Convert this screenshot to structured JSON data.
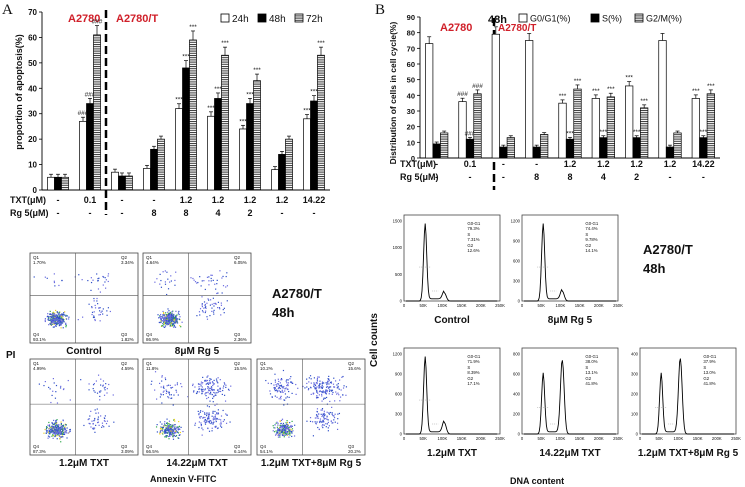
{
  "figure": {
    "panel_a_letter": "A",
    "panel_b_letter": "B",
    "flow_a": {
      "ylabel": "PI",
      "xlabel": "Annexin V-FITC",
      "cell_line": "A2780/T",
      "time": "48h",
      "plots": [
        {
          "caption": "Control",
          "q1": "1.70%",
          "q2": "3.34%",
          "q3": "1.82%",
          "q4": "93.1%"
        },
        {
          "caption": "8μM Rg 5",
          "q1": "4.64%",
          "q2": "6.05%",
          "q3": "2.36%",
          "q4": "86.9%"
        },
        {
          "caption": "1.2μM TXT",
          "q1": "4.99%",
          "q2": "4.59%",
          "q3": "3.09%",
          "q4": "87.3%"
        },
        {
          "caption": "14.22μM TXT",
          "q1": "11.8%",
          "q2": "15.5%",
          "q3": "6.14%",
          "q4": "66.5%"
        },
        {
          "caption": "1.2μM TXT+8μM Rg 5",
          "q1": "10.2%",
          "q2": "15.6%",
          "q3": "20.2%",
          "q4": "54.1%"
        }
      ]
    },
    "flow_b": {
      "ylabel": "Cell counts",
      "xlabel": "DNA content",
      "cell_line": "A2780/T",
      "time": "48h",
      "x_ticks": [
        "0",
        "50K",
        "100K",
        "150K",
        "200K",
        "250K"
      ],
      "plots": [
        {
          "caption": "Control",
          "y_ticks": [
            "0",
            "500",
            "1000",
            "1500"
          ],
          "g0g1": "79.3%",
          "s": "7.31%",
          "g2": "12.6%"
        },
        {
          "caption": "8μM Rg 5",
          "y_ticks": [
            "0",
            "300",
            "600",
            "900",
            "1200"
          ],
          "g0g1": "74.4%",
          "s": "9.78%",
          "g2": "14.1%"
        },
        {
          "caption": "1.2μM TXT",
          "y_ticks": [
            "0",
            "300",
            "600",
            "900",
            "1200"
          ],
          "g0g1": "71.9%",
          "s": "8.39%",
          "g2": "17.1%"
        },
        {
          "caption": "14.22μM TXT",
          "y_ticks": [
            "0",
            "200",
            "400",
            "600",
            "800"
          ],
          "g0g1": "38.0%",
          "s": "13.1%",
          "g2": "41.8%"
        },
        {
          "caption": "1.2μM TXT+8μM Rg 5",
          "y_ticks": [
            "0",
            "100",
            "200",
            "300",
            "400"
          ],
          "g0g1": "37.9%",
          "s": "13.0%",
          "g2": "41.8%"
        }
      ]
    }
  },
  "chart_data": [
    {
      "type": "bar",
      "title": "",
      "ylabel": "proportion of apoptosis(%)",
      "xlabel": "",
      "ylim": [
        0,
        70
      ],
      "y_ticks": [
        0,
        10,
        20,
        30,
        40,
        50,
        60,
        70
      ],
      "group_labels": [
        "A2780",
        "A2780/T"
      ],
      "legend": [
        "24h",
        "48h",
        "72h"
      ],
      "row_labels": [
        "TXT(μM)",
        "Rg 5(μM)"
      ],
      "txt": [
        "-",
        "0.1",
        "-",
        "-",
        "1.2",
        "1.2",
        "1.2",
        "1.2",
        "14.22"
      ],
      "rg5": [
        "-",
        "-",
        "-",
        "8",
        "8",
        "4",
        "2",
        "-",
        "-"
      ],
      "series": [
        {
          "name": "24h",
          "values": [
            5,
            27,
            7,
            8.5,
            32,
            29,
            24,
            8,
            28
          ]
        },
        {
          "name": "48h",
          "values": [
            5,
            34,
            5.5,
            16,
            48,
            36,
            34,
            14,
            35
          ]
        },
        {
          "name": "72h",
          "values": [
            5,
            61,
            5.5,
            20,
            59,
            53,
            43,
            20,
            53
          ]
        }
      ],
      "significance": [
        [
          "",
          "",
          ""
        ],
        [
          "###",
          "###",
          "###"
        ],
        [
          "",
          "",
          ""
        ],
        [
          "",
          "",
          ""
        ],
        [
          "***",
          "***",
          "***"
        ],
        [
          "***",
          "***",
          "***"
        ],
        [
          "***",
          "***",
          "***"
        ],
        [
          "",
          "",
          ""
        ],
        [
          "***",
          "***",
          "***"
        ]
      ]
    },
    {
      "type": "bar",
      "title": "48h",
      "ylabel": "Distribution of cells in cell cycle(%)",
      "xlabel": "",
      "ylim": [
        0,
        90
      ],
      "y_ticks": [
        0,
        10,
        20,
        30,
        40,
        50,
        60,
        70,
        80,
        90
      ],
      "group_labels": [
        "A2780",
        "A2780/T"
      ],
      "legend": [
        "G0/G1(%)",
        "S(%)",
        "G2/M(%)"
      ],
      "row_labels": [
        "TXT(μM)",
        "Rg 5(μM)"
      ],
      "txt": [
        "-",
        "0.1",
        "-",
        "-",
        "1.2",
        "1.2",
        "1.2",
        "1.2",
        "14.22"
      ],
      "rg5": [
        "-",
        "-",
        "-",
        "8",
        "8",
        "4",
        "2",
        "-",
        "-"
      ],
      "series": [
        {
          "name": "G0/G1(%)",
          "values": [
            73,
            36,
            79,
            75,
            35,
            38,
            46,
            75,
            38
          ]
        },
        {
          "name": "S(%)",
          "values": [
            9,
            12,
            7,
            7,
            12,
            13,
            13,
            7,
            13
          ]
        },
        {
          "name": "G2/M(%)",
          "values": [
            16,
            41,
            13,
            15,
            44,
            39,
            32,
            16,
            41
          ]
        }
      ],
      "significance": [
        [
          "",
          "",
          ""
        ],
        [
          "###",
          "###",
          "###"
        ],
        [
          "",
          "",
          ""
        ],
        [
          "",
          "",
          ""
        ],
        [
          "***",
          "***",
          "***"
        ],
        [
          "***",
          "***",
          "***"
        ],
        [
          "***",
          "***",
          "***"
        ],
        [
          "",
          "",
          ""
        ],
        [
          "***",
          "***",
          "***"
        ]
      ]
    }
  ]
}
